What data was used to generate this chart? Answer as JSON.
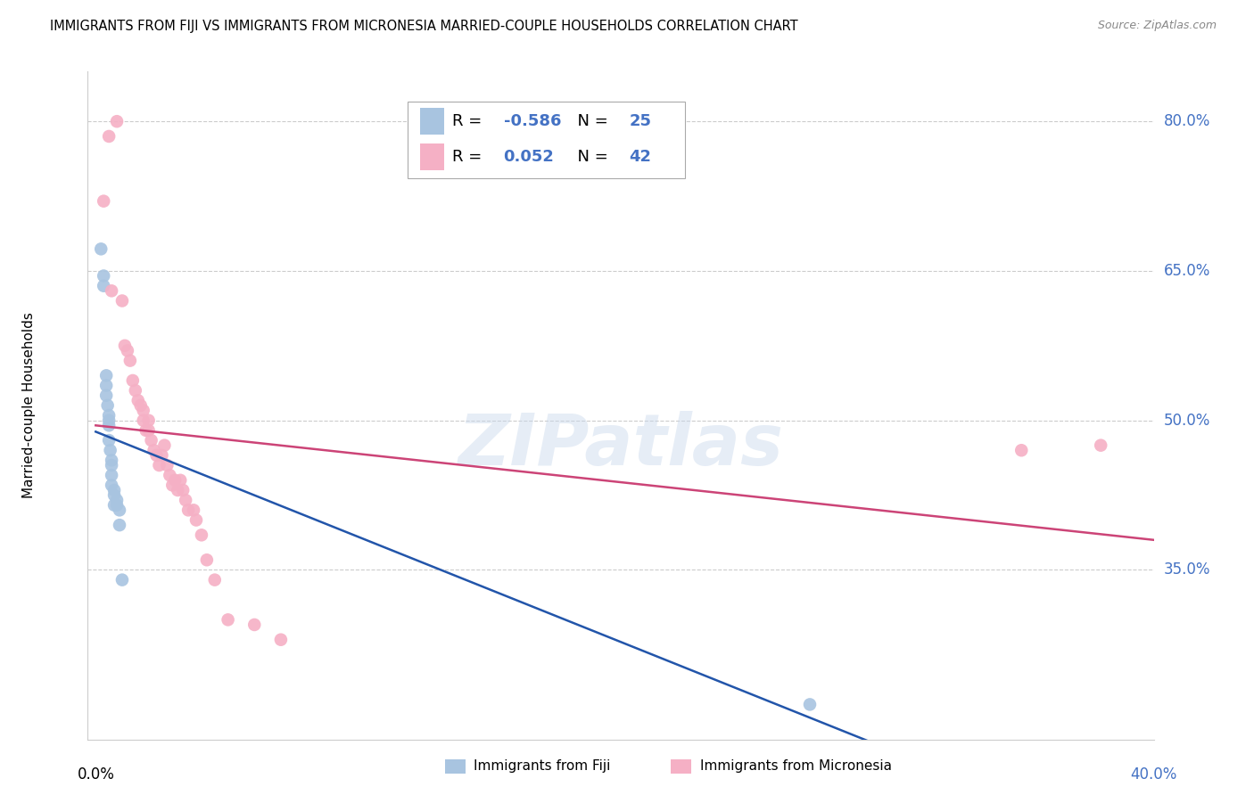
{
  "title": "IMMIGRANTS FROM FIJI VS IMMIGRANTS FROM MICRONESIA MARRIED-COUPLE HOUSEHOLDS CORRELATION CHART",
  "source": "Source: ZipAtlas.com",
  "ylabel": "Married-couple Households",
  "legend_fiji_R": "-0.586",
  "legend_fiji_N": "25",
  "legend_micronesia_R": "0.052",
  "legend_micronesia_N": "42",
  "fiji_color": "#a8c4e0",
  "fiji_line_color": "#2255aa",
  "micronesia_color": "#f5b0c5",
  "micronesia_line_color": "#cc4477",
  "watermark": "ZIPatlas",
  "fiji_x": [
    0.002,
    0.003,
    0.003,
    0.004,
    0.004,
    0.004,
    0.0045,
    0.005,
    0.005,
    0.005,
    0.005,
    0.0055,
    0.006,
    0.006,
    0.006,
    0.006,
    0.007,
    0.007,
    0.007,
    0.008,
    0.008,
    0.009,
    0.009,
    0.01,
    0.27
  ],
  "fiji_y": [
    0.672,
    0.645,
    0.635,
    0.545,
    0.535,
    0.525,
    0.515,
    0.505,
    0.5,
    0.495,
    0.48,
    0.47,
    0.46,
    0.455,
    0.445,
    0.435,
    0.43,
    0.425,
    0.415,
    0.415,
    0.42,
    0.41,
    0.395,
    0.34,
    0.215
  ],
  "micronesia_x": [
    0.003,
    0.005,
    0.006,
    0.008,
    0.01,
    0.011,
    0.012,
    0.013,
    0.014,
    0.015,
    0.016,
    0.017,
    0.018,
    0.018,
    0.019,
    0.02,
    0.02,
    0.021,
    0.022,
    0.023,
    0.024,
    0.025,
    0.026,
    0.027,
    0.028,
    0.029,
    0.03,
    0.031,
    0.032,
    0.033,
    0.034,
    0.035,
    0.037,
    0.038,
    0.04,
    0.042,
    0.045,
    0.05,
    0.06,
    0.07,
    0.35,
    0.38
  ],
  "micronesia_y": [
    0.72,
    0.785,
    0.63,
    0.8,
    0.62,
    0.575,
    0.57,
    0.56,
    0.54,
    0.53,
    0.52,
    0.515,
    0.51,
    0.5,
    0.49,
    0.5,
    0.49,
    0.48,
    0.47,
    0.465,
    0.455,
    0.465,
    0.475,
    0.455,
    0.445,
    0.435,
    0.44,
    0.43,
    0.44,
    0.43,
    0.42,
    0.41,
    0.41,
    0.4,
    0.385,
    0.36,
    0.34,
    0.3,
    0.295,
    0.28,
    0.47,
    0.475
  ],
  "xmin": 0.0,
  "xmax": 0.4,
  "ymin": 0.18,
  "ymax": 0.85,
  "yticks": [
    0.35,
    0.5,
    0.65,
    0.8
  ],
  "ytick_labels": [
    "35.0%",
    "50.0%",
    "65.0%",
    "80.0%"
  ],
  "background_color": "#ffffff",
  "grid_color": "#cccccc",
  "right_label_color": "#4472c4",
  "legend_label_fiji": "Immigrants from Fiji",
  "legend_label_micronesia": "Immigrants from Micronesia"
}
